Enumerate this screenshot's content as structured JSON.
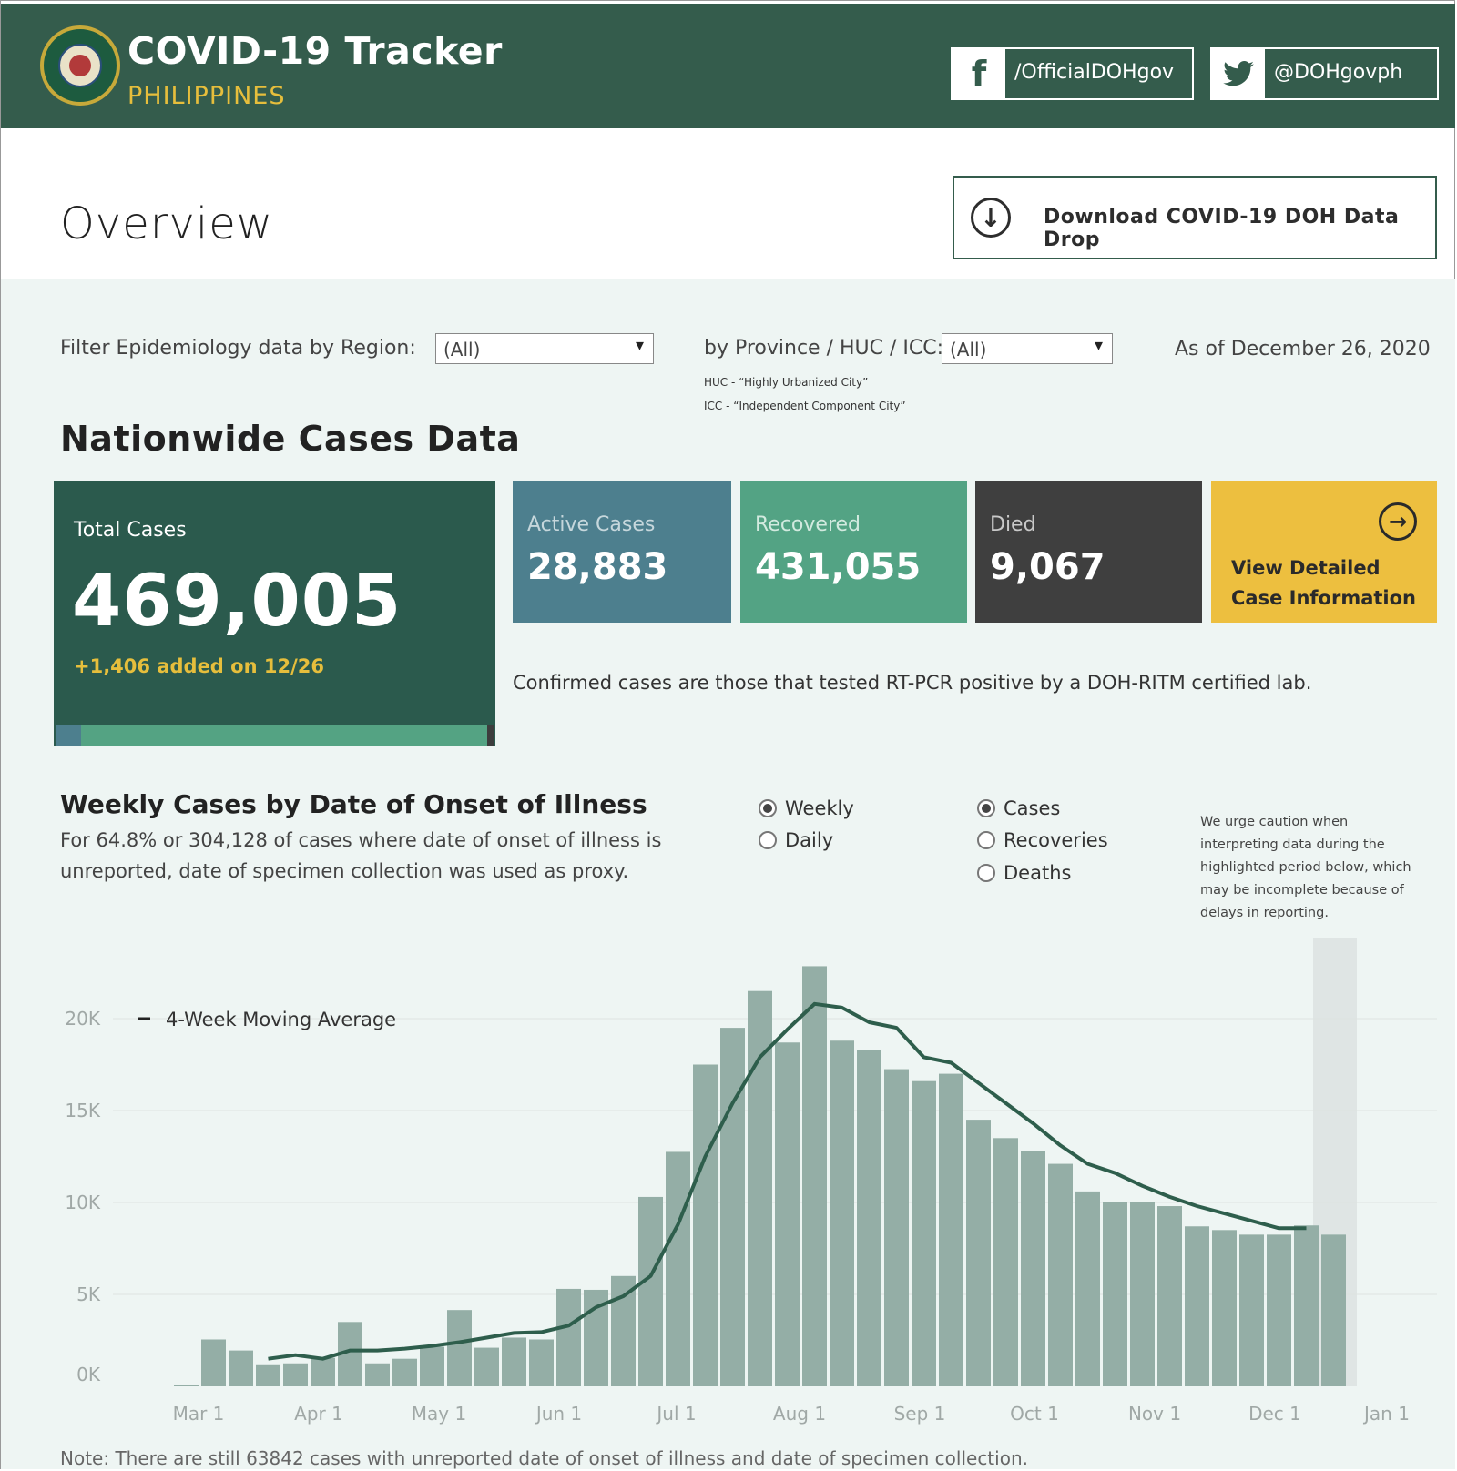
{
  "header": {
    "title": "COVID-19 Tracker",
    "subtitle": "PHILIPPINES",
    "facebook": "/OfficialDOHgov",
    "twitter": "@DOHgovph"
  },
  "overview": {
    "title": "Overview",
    "download_label": "Download COVID-19 DOH Data Drop"
  },
  "filters": {
    "region_label": "Filter Epidemiology data by Region:",
    "region_value": "(All)",
    "province_label": "by Province / HUC / ICC:",
    "province_value": "(All)",
    "huc_note": "HUC - “Highly Urbanized City”",
    "icc_note": "ICC - “Independent Component City”",
    "as_of": "As of December 26, 2020"
  },
  "nationwide": {
    "title": "Nationwide Cases Data",
    "total_label": "Total Cases",
    "total_value": "469,005",
    "total_added": "+1,406 added on 12/26",
    "active_label": "Active Cases",
    "active_value": "28,883",
    "recovered_label": "Recovered",
    "recovered_value": "431,055",
    "died_label": "Died",
    "died_value": "9,067",
    "detail_line1": "View Detailed",
    "detail_line2": "Case Information",
    "confirmed_note": "Confirmed cases are those that tested RT-PCR positive by a DOH-RITM certified lab."
  },
  "weekly": {
    "title": "Weekly Cases by Date of Onset of Illness",
    "subtitle_line1": "For 64.8% or 304,128 of cases where date of onset of illness is",
    "subtitle_line2": "unreported, date of specimen collection was used as proxy.",
    "period_options": [
      "Weekly",
      "Daily"
    ],
    "period_selected": "Weekly",
    "measure_options": [
      "Cases",
      "Recoveries",
      "Deaths"
    ],
    "measure_selected": "Cases",
    "caution": [
      "We urge caution when",
      "interpreting data during the",
      "highlighted period below, which",
      "may be incomplete because of",
      "delays in reporting."
    ],
    "note": "Note: There are still 63842 cases with unreported date of onset of illness and date of specimen collection."
  },
  "colors": {
    "header_bg": "#345c4c",
    "accent_yellow": "#e6be3c",
    "active": "#4d7f8e",
    "recovered": "#53a384",
    "died": "#3f3f3f",
    "bar": "#94aea6",
    "line": "#2e5e4c"
  },
  "chart_data": {
    "type": "bar",
    "title": "Weekly Cases by Date of Onset of Illness",
    "xlabel": "",
    "ylabel": "",
    "ylim": [
      0,
      23000
    ],
    "y_ticks": [
      0,
      5000,
      10000,
      15000,
      20000
    ],
    "y_tick_labels": [
      "0K",
      "5K",
      "10K",
      "15K",
      "20K"
    ],
    "x_tick_labels": [
      "Mar 1",
      "Apr 1",
      "May 1",
      "Jun 1",
      "Jul 1",
      "Aug 1",
      "Sep 1",
      "Oct 1",
      "Nov 1",
      "Dec 1",
      "Jan 1"
    ],
    "x_tick_weeks": [
      0.9,
      5.3,
      9.7,
      14.1,
      18.4,
      22.9,
      27.3,
      31.5,
      35.9,
      40.3,
      44.4
    ],
    "legend": "4-Week Moving Average",
    "highlight_weeks": [
      41.7,
      43.3
    ],
    "series": [
      {
        "name": "Cases",
        "type": "bar",
        "values": [
          50,
          2550,
          1950,
          1150,
          1250,
          1550,
          3500,
          1250,
          1500,
          2150,
          4150,
          2100,
          2650,
          2550,
          5300,
          5250,
          6000,
          10300,
          12750,
          17500,
          19500,
          21500,
          18700,
          22850,
          18800,
          18300,
          17250,
          16600,
          17000,
          14500,
          13500,
          12800,
          12100,
          10600,
          10000,
          10000,
          9800,
          8700,
          8500,
          8250,
          8250,
          8750,
          8250
        ]
      },
      {
        "name": "4-Week Moving Average",
        "type": "line",
        "start_index": 3,
        "values": [
          1500,
          1700,
          1500,
          1950,
          1950,
          2050,
          2200,
          2400,
          2650,
          2900,
          2950,
          3300,
          4300,
          4900,
          6000,
          8800,
          12500,
          15400,
          17900,
          19400,
          20800,
          20600,
          19800,
          19500,
          17900,
          17600,
          16500,
          15400,
          14300,
          13100,
          12100,
          11600,
          10900,
          10300,
          9800,
          9400,
          9000,
          8600,
          8600
        ]
      }
    ]
  }
}
